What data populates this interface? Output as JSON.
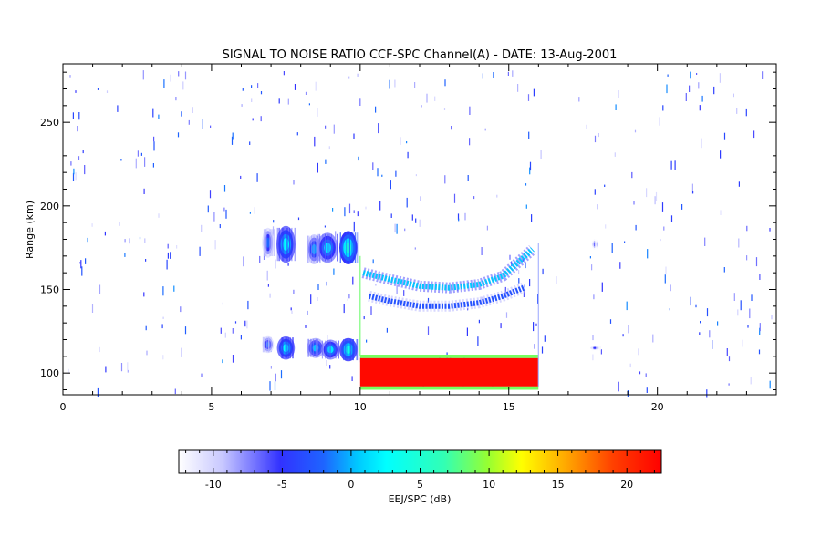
{
  "chart_data": {
    "type": "heatmap",
    "title": "SIGNAL TO NOISE RATIO CCF-SPC Channel(A) - DATE: 13-Aug-2001",
    "xlabel": "",
    "ylabel": "Range (km)",
    "xlim": [
      0,
      24
    ],
    "ylim": [
      87,
      285
    ],
    "x_ticks": [
      "0",
      "5",
      "10",
      "15",
      "20"
    ],
    "y_ticks": [
      "100",
      "150",
      "200",
      "250"
    ],
    "grid": false,
    "colorbar": {
      "label": "EEJ/SPC (dB)",
      "range": [
        -12.5,
        22.5
      ],
      "ticks": [
        "-10",
        "-5",
        "0",
        "5",
        "10",
        "15",
        "20"
      ],
      "colors": [
        "#ffffff",
        "#3232ff",
        "#00ffff",
        "#ffff00",
        "#ff0000"
      ]
    },
    "blocks": [
      {
        "x0": 10.0,
        "x1": 16.0,
        "y0": 92,
        "y1": 109,
        "snr": 22
      },
      {
        "x0": 10.0,
        "x1": 16.0,
        "y0": 90,
        "y1": 92,
        "snr": 8
      },
      {
        "x0": 10.0,
        "x1": 16.0,
        "y0": 109,
        "y1": 111,
        "snr": 8
      }
    ],
    "blobs": [
      {
        "x": 6.9,
        "y": 178,
        "rx": 0.2,
        "ry": 9,
        "snr": -2
      },
      {
        "x": 7.5,
        "y": 177,
        "rx": 0.32,
        "ry": 11,
        "snr": 2
      },
      {
        "x": 8.45,
        "y": 174,
        "rx": 0.25,
        "ry": 9,
        "snr": -1
      },
      {
        "x": 8.9,
        "y": 175,
        "rx": 0.35,
        "ry": 9,
        "snr": 1
      },
      {
        "x": 9.6,
        "y": 175,
        "rx": 0.3,
        "ry": 10,
        "snr": 4
      },
      {
        "x": 6.9,
        "y": 117,
        "rx": 0.2,
        "ry": 5,
        "snr": -2
      },
      {
        "x": 7.5,
        "y": 115,
        "rx": 0.3,
        "ry": 7,
        "snr": 2
      },
      {
        "x": 8.5,
        "y": 115,
        "rx": 0.3,
        "ry": 6,
        "snr": 0
      },
      {
        "x": 9.0,
        "y": 114,
        "rx": 0.3,
        "ry": 6,
        "snr": 1
      },
      {
        "x": 9.6,
        "y": 114,
        "rx": 0.3,
        "ry": 7,
        "snr": 3
      },
      {
        "x": 17.9,
        "y": 177,
        "rx": 0.15,
        "ry": 4,
        "snr": -6
      },
      {
        "x": 17.9,
        "y": 115,
        "rx": 0.2,
        "ry": 1.5,
        "snr": -5
      }
    ],
    "layer_upper": [
      {
        "x": 10.1,
        "y": 160
      },
      {
        "x": 11.0,
        "y": 156
      },
      {
        "x": 12.0,
        "y": 152
      },
      {
        "x": 13.0,
        "y": 151
      },
      {
        "x": 14.0,
        "y": 153
      },
      {
        "x": 14.8,
        "y": 158
      },
      {
        "x": 15.3,
        "y": 166
      },
      {
        "x": 15.8,
        "y": 174
      }
    ],
    "layer_lower": [
      {
        "x": 10.3,
        "y": 146
      },
      {
        "x": 11.0,
        "y": 143
      },
      {
        "x": 12.0,
        "y": 140
      },
      {
        "x": 13.0,
        "y": 140
      },
      {
        "x": 14.0,
        "y": 142
      },
      {
        "x": 14.8,
        "y": 146
      },
      {
        "x": 15.5,
        "y": 151
      }
    ]
  }
}
